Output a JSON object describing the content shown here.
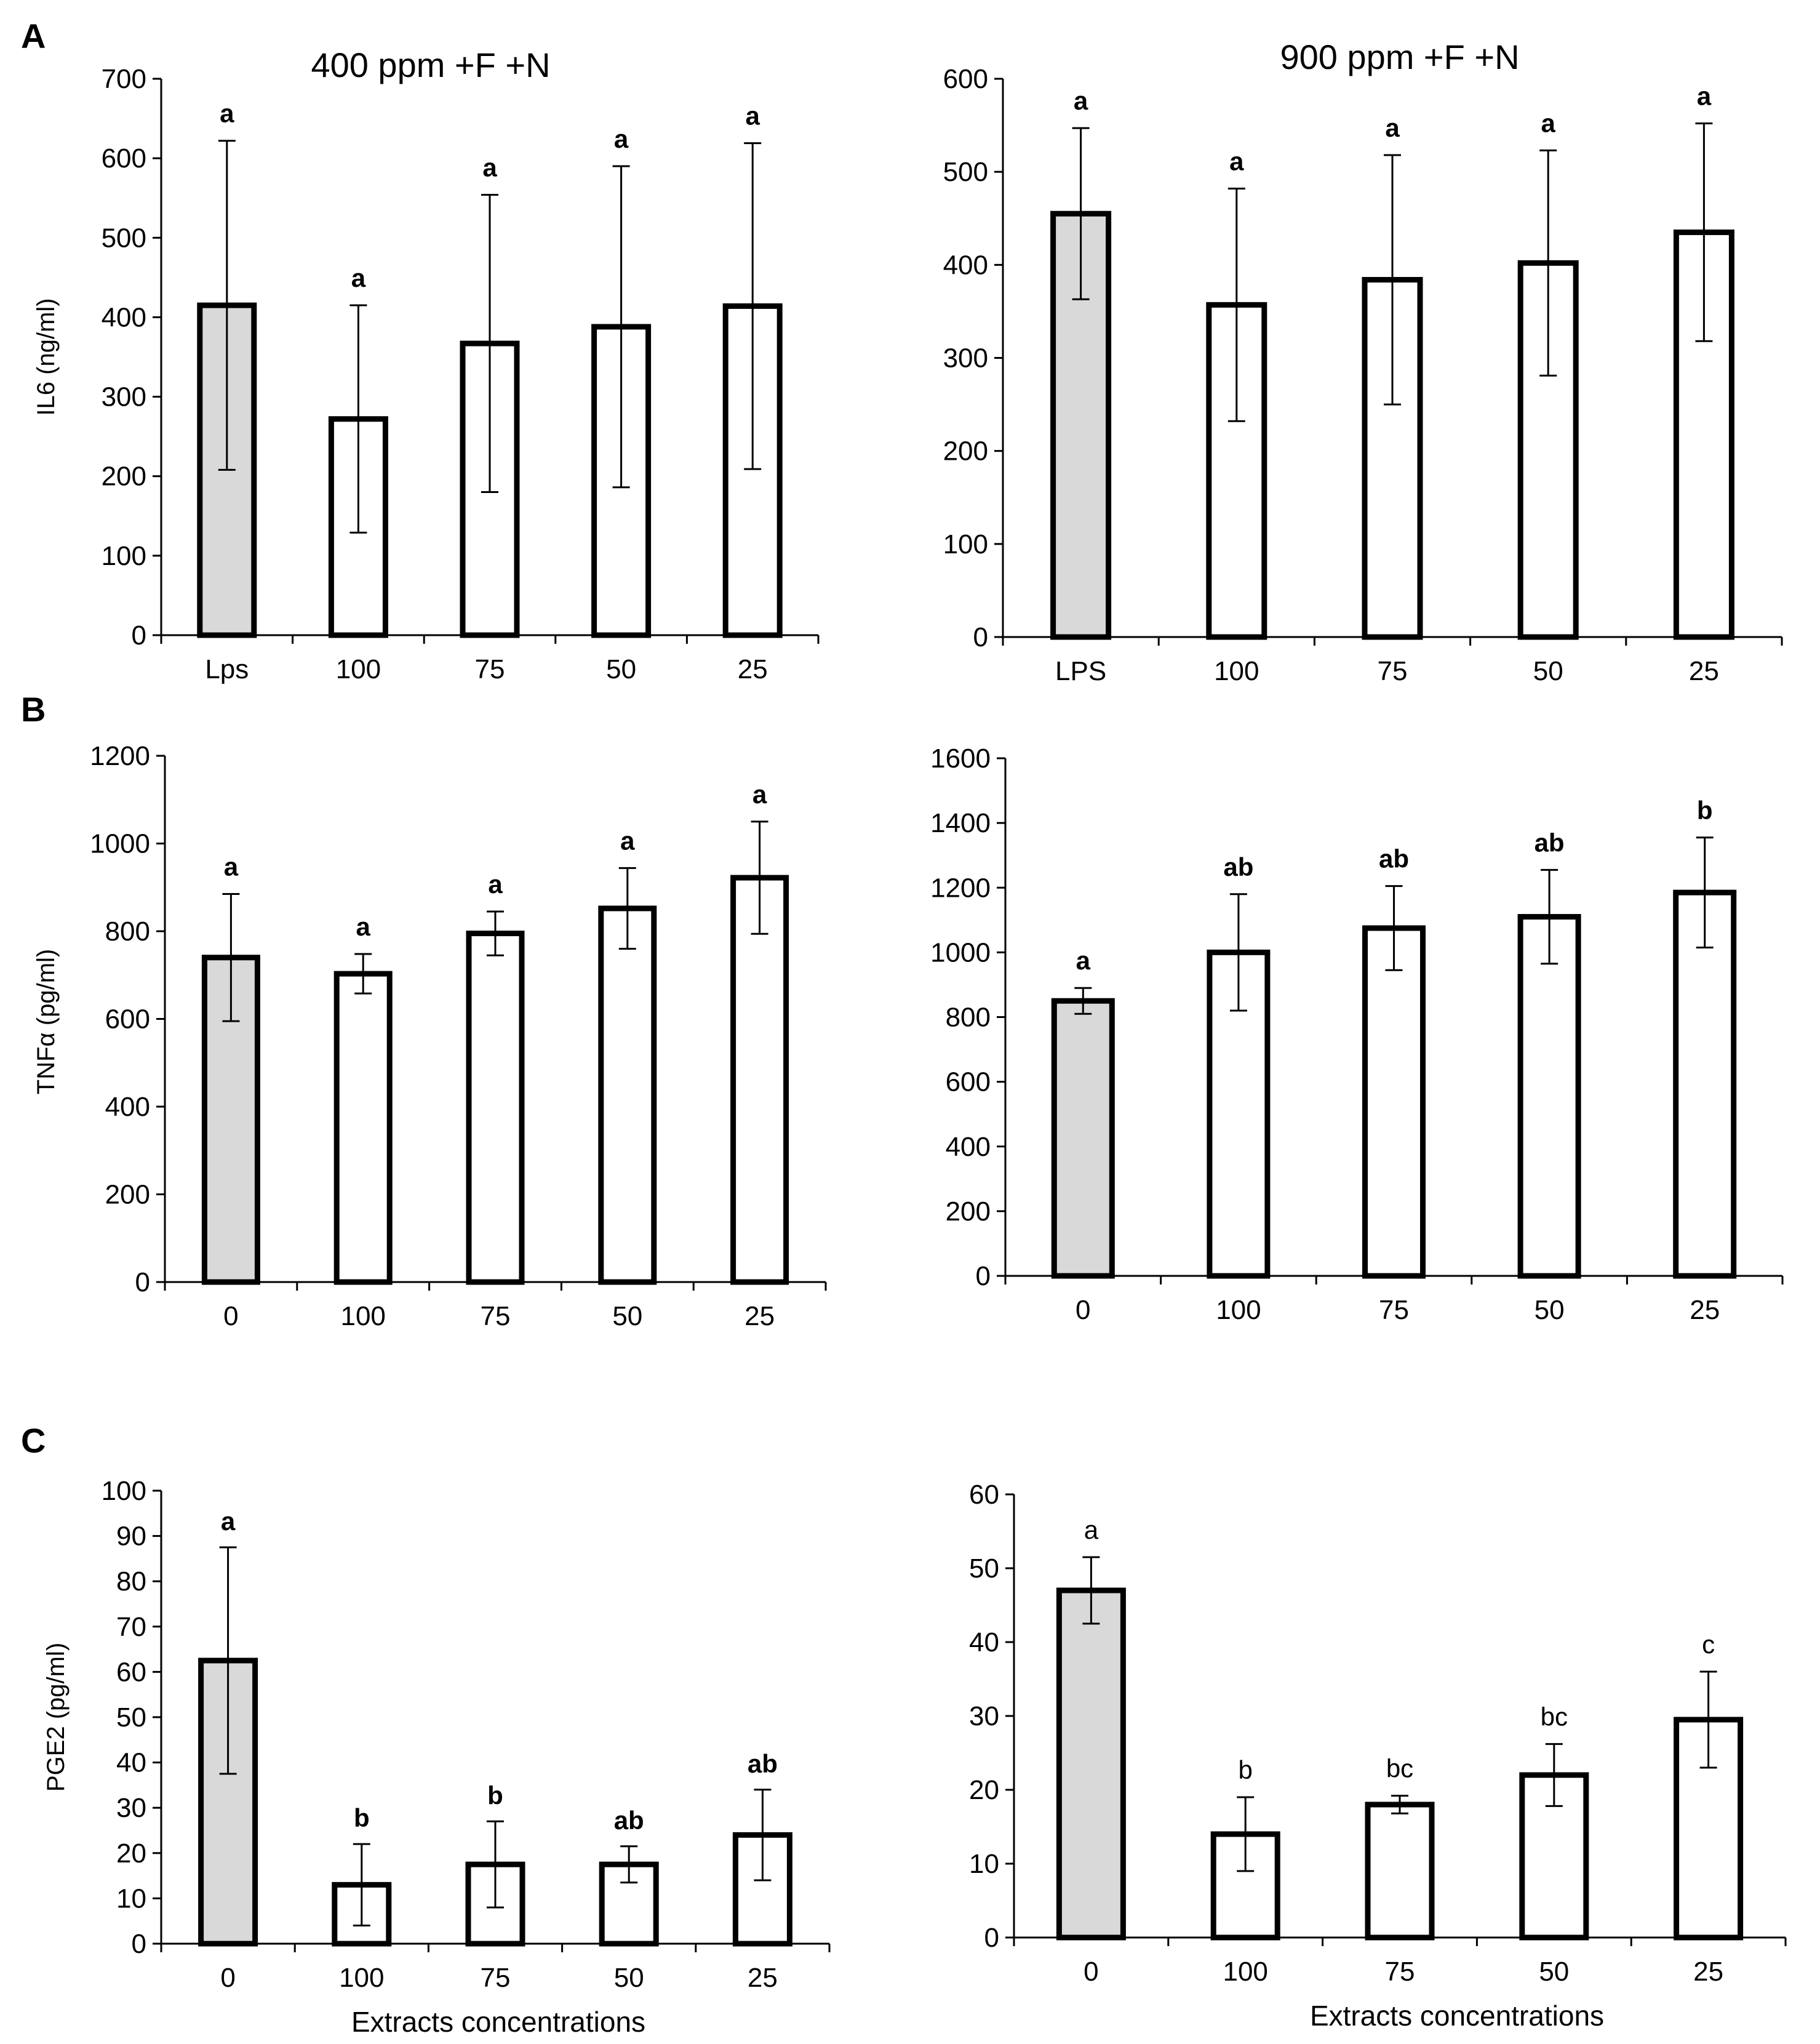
{
  "colors": {
    "lps_fill": "#d9d9d9",
    "bar_fill": "#ffffff",
    "stroke": "#000000"
  },
  "panel_labels": [
    "A",
    "B",
    "C"
  ],
  "chart_data": [
    {
      "id": "A-left",
      "type": "bar",
      "panel": "A",
      "title": "400 ppm +F +N",
      "ylabel": "IL6 (ng/ml)",
      "xlabel": "",
      "categories": [
        "Lps",
        "100",
        "75",
        "50",
        "25"
      ],
      "values": [
        415,
        272,
        367,
        388,
        414
      ],
      "errors": [
        207,
        143,
        187,
        202,
        205
      ],
      "significance": [
        "a",
        "a",
        "a",
        "a",
        "a"
      ],
      "ylim": [
        0,
        700
      ],
      "yticks": [
        0,
        100,
        200,
        300,
        400,
        500,
        600,
        700
      ],
      "sig_bold": true
    },
    {
      "id": "A-right",
      "type": "bar",
      "panel": "A",
      "title": "900 ppm +F +N",
      "ylabel": "",
      "xlabel": "",
      "categories": [
        "LPS",
        "100",
        "75",
        "50",
        "25"
      ],
      "values": [
        455,
        357,
        384,
        402,
        435
      ],
      "errors": [
        92,
        125,
        134,
        121,
        117
      ],
      "significance": [
        "a",
        "a",
        "a",
        "a",
        "a"
      ],
      "ylim": [
        0,
        600
      ],
      "yticks": [
        0,
        100,
        200,
        300,
        400,
        500,
        600
      ],
      "sig_bold": true
    },
    {
      "id": "B-left",
      "type": "bar",
      "panel": "B",
      "title": "",
      "ylabel": "TNFα (pg/ml)",
      "xlabel": "",
      "categories": [
        "0",
        "100",
        "75",
        "50",
        "25"
      ],
      "values": [
        740,
        703,
        795,
        852,
        922
      ],
      "errors": [
        145,
        45,
        50,
        92,
        128
      ],
      "significance": [
        "a",
        "a",
        "a",
        "a",
        "a"
      ],
      "ylim": [
        0,
        1200
      ],
      "yticks": [
        0,
        200,
        400,
        600,
        800,
        1000,
        1200
      ],
      "sig_bold": true
    },
    {
      "id": "B-right",
      "type": "bar",
      "panel": "B",
      "title": "",
      "ylabel": "",
      "xlabel": "",
      "categories": [
        "0",
        "100",
        "75",
        "50",
        "25"
      ],
      "values": [
        850,
        1000,
        1075,
        1110,
        1185
      ],
      "errors": [
        40,
        180,
        130,
        145,
        170
      ],
      "significance": [
        "a",
        "ab",
        "ab",
        "ab",
        "b"
      ],
      "ylim": [
        0,
        1600
      ],
      "yticks": [
        0,
        200,
        400,
        600,
        800,
        1000,
        1200,
        1400,
        1600
      ],
      "sig_bold": true
    },
    {
      "id": "C-left",
      "type": "bar",
      "panel": "C",
      "title": "",
      "ylabel": "PGE2 (pg/ml)",
      "xlabel": "Extracts concentrations",
      "categories": [
        "0",
        "100",
        "75",
        "50",
        "25"
      ],
      "values": [
        62.5,
        13,
        17.5,
        17.5,
        24
      ],
      "errors": [
        25,
        9,
        9.5,
        4,
        10
      ],
      "significance": [
        "a",
        "b",
        "b",
        "ab",
        "ab"
      ],
      "ylim": [
        0,
        100
      ],
      "yticks": [
        0,
        10,
        20,
        30,
        40,
        50,
        60,
        70,
        80,
        90,
        100
      ],
      "sig_bold": true
    },
    {
      "id": "C-right",
      "type": "bar",
      "panel": "C",
      "title": "",
      "ylabel": "",
      "xlabel": "Extracts concentrations",
      "categories": [
        "0",
        "100",
        "75",
        "50",
        "25"
      ],
      "values": [
        47,
        14,
        18,
        22,
        29.5
      ],
      "errors": [
        4.5,
        5,
        1.2,
        4.2,
        6.5
      ],
      "significance": [
        "a",
        "b",
        "bc",
        "bc",
        "c"
      ],
      "ylim": [
        0,
        60
      ],
      "yticks": [
        0,
        10,
        20,
        30,
        40,
        50,
        60
      ],
      "sig_bold": false
    }
  ]
}
